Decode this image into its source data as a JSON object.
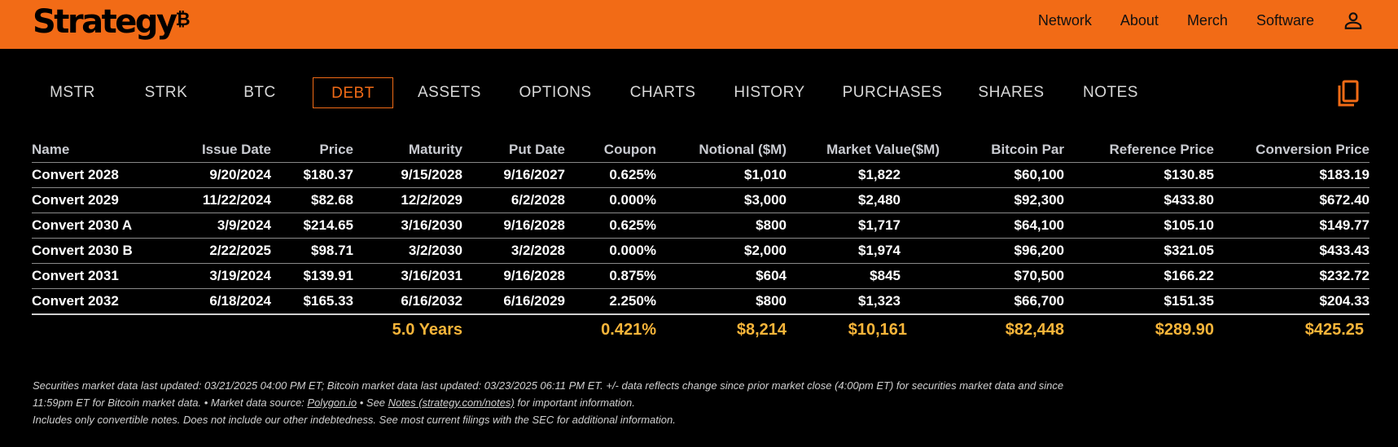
{
  "brand": {
    "name": "Strategy",
    "mark": "₿"
  },
  "header": {
    "nav": [
      "Network",
      "About",
      "Merch",
      "Software"
    ]
  },
  "tabs": [
    "MSTR",
    "STRK",
    "BTC",
    "DEBT",
    "ASSETS",
    "OPTIONS",
    "CHARTS",
    "HISTORY",
    "PURCHASES",
    "SHARES",
    "NOTES"
  ],
  "active_tab": "DEBT",
  "table": {
    "columns": [
      "Name",
      "Issue Date",
      "Price",
      "Maturity",
      "Put Date",
      "Coupon",
      "Notional ($M)",
      "Market Value($M)",
      "Bitcoin Par",
      "Reference Price",
      "Conversion Price"
    ],
    "rows": [
      [
        "Convert 2028",
        "9/20/2024",
        "$180.37",
        "9/15/2028",
        "9/16/2027",
        "0.625%",
        "$1,010",
        "$1,822",
        "$60,100",
        "$130.85",
        "$183.19"
      ],
      [
        "Convert 2029",
        "11/22/2024",
        "$82.68",
        "12/2/2029",
        "6/2/2028",
        "0.000%",
        "$3,000",
        "$2,480",
        "$92,300",
        "$433.80",
        "$672.40"
      ],
      [
        "Convert 2030 A",
        "3/9/2024",
        "$214.65",
        "3/16/2030",
        "9/16/2028",
        "0.625%",
        "$800",
        "$1,717",
        "$64,100",
        "$105.10",
        "$149.77"
      ],
      [
        "Convert 2030 B",
        "2/22/2025",
        "$98.71",
        "3/2/2030",
        "3/2/2028",
        "0.000%",
        "$2,000",
        "$1,974",
        "$96,200",
        "$321.05",
        "$433.43"
      ],
      [
        "Convert 2031",
        "3/19/2024",
        "$139.91",
        "3/16/2031",
        "9/16/2028",
        "0.875%",
        "$604",
        "$845",
        "$70,500",
        "$166.22",
        "$232.72"
      ],
      [
        "Convert 2032",
        "6/18/2024",
        "$165.33",
        "6/16/2032",
        "6/16/2029",
        "2.250%",
        "$800",
        "$1,323",
        "$66,700",
        "$151.35",
        "$204.33"
      ]
    ],
    "totals": [
      "",
      "",
      "",
      "5.0 Years",
      "",
      "0.421%",
      "$8,214",
      "$10,161",
      "$82,448",
      "$289.90",
      "$425.25"
    ]
  },
  "notes": {
    "line1": "Securities market data last updated: 03/21/2025 04:00 PM ET; Bitcoin market data last updated: 03/23/2025 06:11 PM ET. +/- data reflects change since prior market close (4:00pm ET) for securities market data and since",
    "line2_a": "11:59pm ET for Bitcoin market data.   •   Market data source: ",
    "line2_link1": "Polygon.io",
    "line2_b": "  •  See ",
    "line2_link2": "Notes (strategy.com/notes)",
    "line2_c": " for important information.",
    "line3": "Includes only convertible notes. Does not include our other indebtedness. See most current filings with the SEC for additional information."
  },
  "colors": {
    "brand": "#f26b16",
    "totals": "#f7b53a",
    "background": "#000000"
  }
}
